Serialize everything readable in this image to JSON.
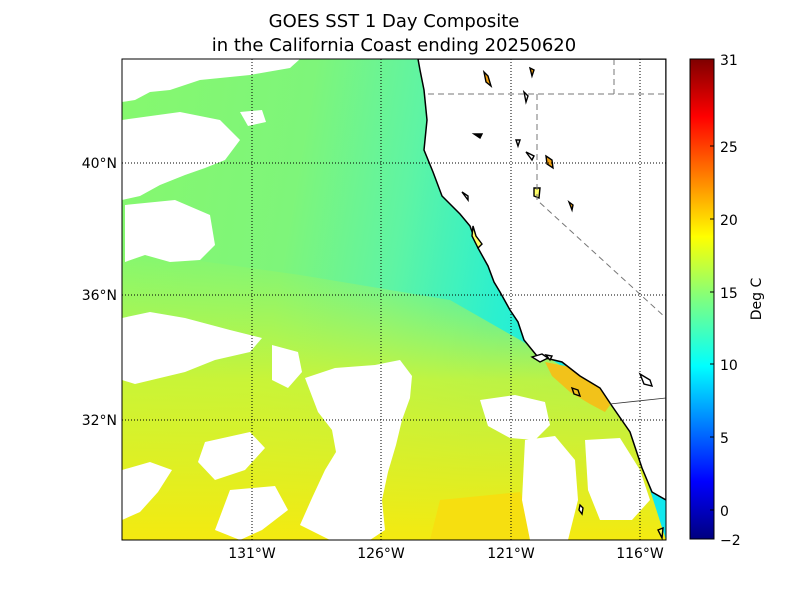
{
  "title": {
    "line1": "GOES SST 1 Day Composite",
    "line2": "in the California Coast ending 20250620"
  },
  "map": {
    "lon_range": [
      -136,
      -115
    ],
    "lat_range": [
      28.5,
      43
    ],
    "meridians": [
      {
        "lon": -131,
        "label": "131°W"
      },
      {
        "lon": -126,
        "label": "126°W"
      },
      {
        "lon": -121,
        "label": "121°W"
      },
      {
        "lon": -116,
        "label": "116°W"
      }
    ],
    "parallels": [
      {
        "lat": 40,
        "label": "40°N"
      },
      {
        "lat": 36,
        "label": "36°N"
      },
      {
        "lat": 32,
        "label": "32°N"
      }
    ]
  },
  "colorbar": {
    "label": "Deg C",
    "min": -2,
    "max": 31,
    "ticks": [
      {
        "value": 31,
        "label": "31"
      },
      {
        "value": 25,
        "label": "25"
      },
      {
        "value": 20,
        "label": "20"
      },
      {
        "value": 15,
        "label": "15"
      },
      {
        "value": 10,
        "label": "10"
      },
      {
        "value": 5,
        "label": "5"
      },
      {
        "value": 0,
        "label": "0"
      },
      {
        "value": -2,
        "label": "−2"
      }
    ]
  },
  "colors": {
    "cold": "#00ffff",
    "mid": "#7fff7f",
    "warm": "#ffee00",
    "hot": "#ffa500"
  }
}
